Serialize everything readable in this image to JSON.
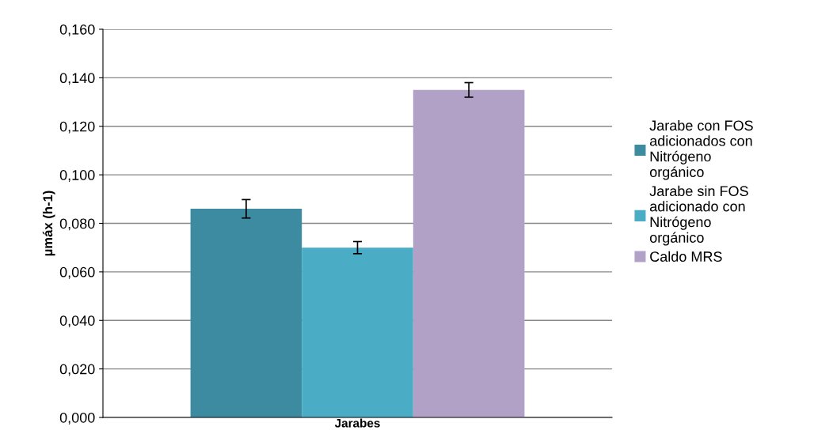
{
  "chart_data": {
    "type": "bar",
    "ylabel": "µmáx (h-1)",
    "categories": [
      "Jarabes"
    ],
    "series": [
      {
        "name": "Jarabe con FOS adicionados con Nitrógeno orgánico",
        "color": "#3c8ba0",
        "values": [
          0.086
        ],
        "errors": [
          0.0038
        ]
      },
      {
        "name": "Jarabe sin FOS adicionado con Nitrógeno orgánico",
        "color": "#4bacc6",
        "values": [
          0.07
        ],
        "errors": [
          0.0025
        ]
      },
      {
        "name": "Caldo MRS",
        "color": "#b2a1c7",
        "values": [
          0.135
        ],
        "errors": [
          0.003
        ]
      }
    ],
    "ylim": [
      0,
      0.16
    ],
    "yticks": [
      {
        "value": 0,
        "label": "0,000"
      },
      {
        "value": 0.02,
        "label": "0,020"
      },
      {
        "value": 0.04,
        "label": "0,040"
      },
      {
        "value": 0.06,
        "label": "0,060"
      },
      {
        "value": 0.08,
        "label": "0,080"
      },
      {
        "value": 0.1,
        "label": "0,100"
      },
      {
        "value": 0.12,
        "label": "0,120"
      },
      {
        "value": 0.14,
        "label": "0,140"
      },
      {
        "value": 0.16,
        "label": "0,160"
      }
    ],
    "grid": "y",
    "legend": "right"
  }
}
